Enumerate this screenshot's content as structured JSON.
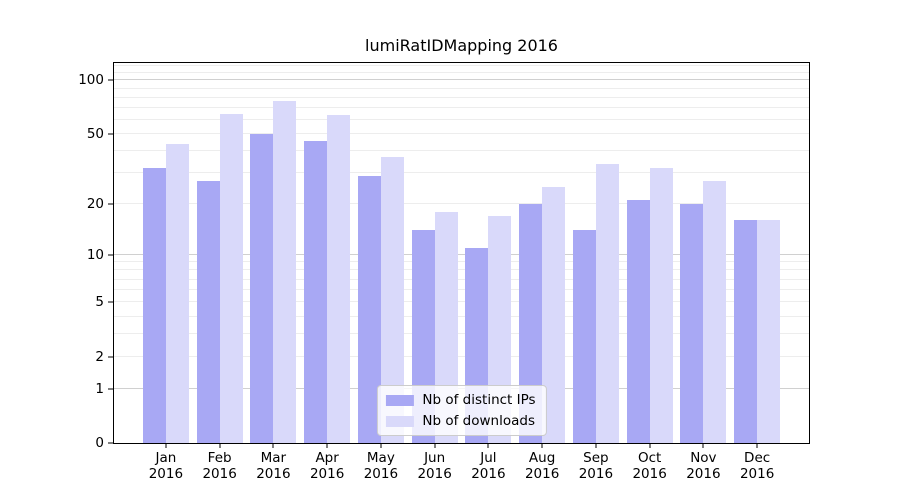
{
  "chart_data": {
    "type": "bar",
    "title": "lumiRatIDMapping 2016",
    "categories": [
      "Jan",
      "Feb",
      "Mar",
      "Apr",
      "May",
      "Jun",
      "Jul",
      "Aug",
      "Sep",
      "Oct",
      "Nov",
      "Dec"
    ],
    "year": "2016",
    "series": [
      {
        "name": "Nb of distinct IPs",
        "color": "#a8a8f4",
        "values": [
          32,
          27,
          50,
          46,
          29,
          14,
          11,
          20,
          14,
          21,
          20,
          16
        ]
      },
      {
        "name": "Nb of downloads",
        "color": "#d9d9fa",
        "values": [
          44,
          65,
          77,
          64,
          37,
          18,
          17,
          25,
          34,
          32,
          27,
          16
        ]
      }
    ],
    "xlabel": "",
    "ylabel": "",
    "yscale": "log1p",
    "ylim": [
      0,
      125
    ],
    "yticks": [
      0,
      1,
      2,
      5,
      10,
      20,
      50,
      100
    ],
    "ytick_labels": [
      "0",
      "1",
      "2",
      "5",
      "10",
      "20",
      "50",
      "100"
    ],
    "grid": {
      "on": true,
      "major": [
        1,
        10,
        100
      ],
      "minor": [
        2,
        3,
        4,
        5,
        6,
        7,
        8,
        9,
        20,
        30,
        40,
        50,
        60,
        70,
        80,
        90,
        110,
        120
      ]
    },
    "legend_position": "lower center"
  },
  "colors": {
    "spine": "#000000",
    "major_grid": "#d0d0d0",
    "minor_grid": "#ededed",
    "legend_border": "#cccccc",
    "text": "#000000"
  }
}
